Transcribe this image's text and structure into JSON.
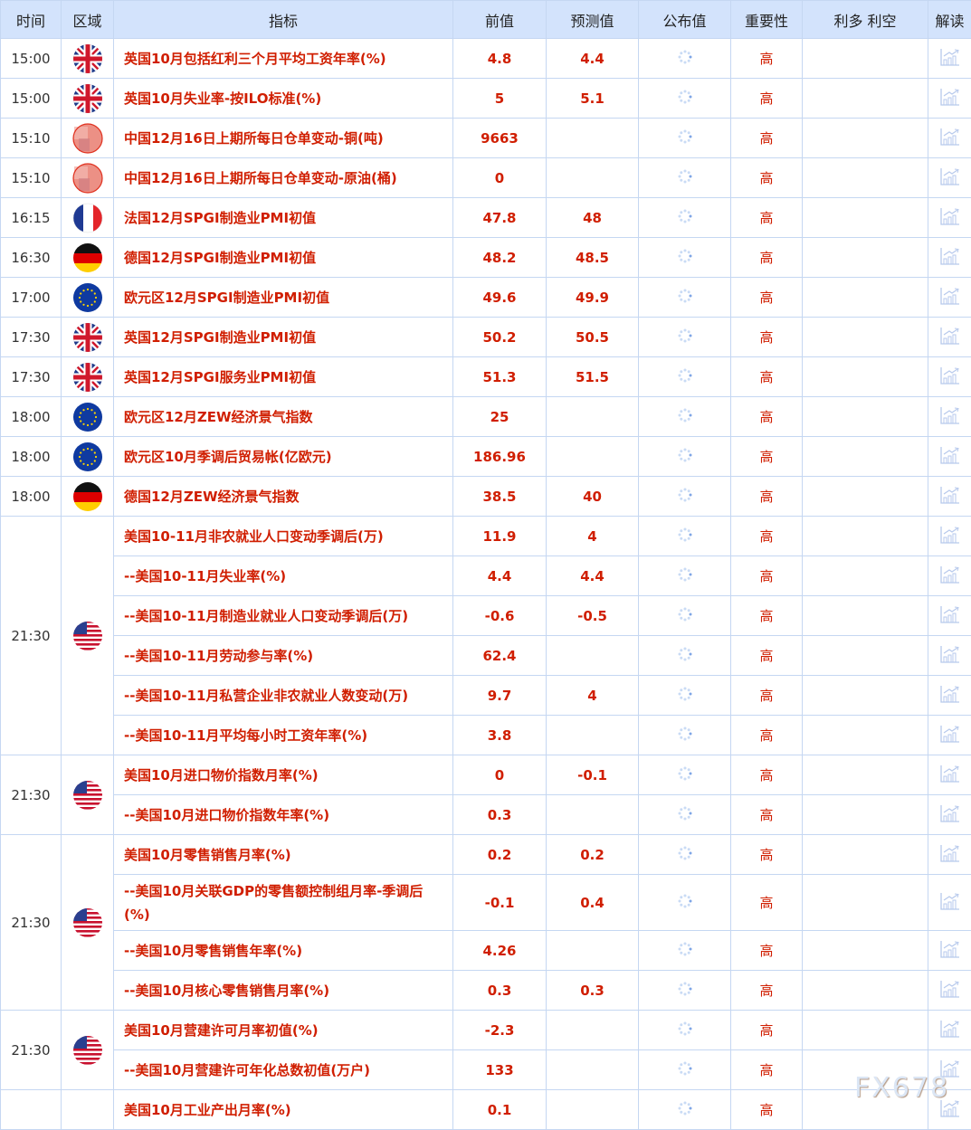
{
  "headers": [
    "时间",
    "区域",
    "指标",
    "前值",
    "预测值",
    "公布值",
    "重要性",
    "利多 利空",
    "解读"
  ],
  "colors": {
    "accent_red": "#d01e00",
    "header_bg": "#d3e3fc",
    "border": "#c5d7f2"
  },
  "rows": [
    {
      "time": "15:00",
      "flag": "uk",
      "span": 1,
      "indicator": "英国10月包括红利三个月平均工资年率(%)",
      "prev": "4.8",
      "forecast": "4.4",
      "actual": "",
      "importance": "高"
    },
    {
      "time": "15:00",
      "flag": "uk",
      "span": 1,
      "indicator": "英国10月失业率-按ILO标准(%)",
      "prev": "5",
      "forecast": "5.1",
      "actual": "",
      "importance": "高"
    },
    {
      "time": "15:10",
      "flag": "cn",
      "span": 1,
      "indicator": "中国12月16日上期所每日仓单变动-铜(吨)",
      "prev": "9663",
      "forecast": "",
      "actual": "",
      "importance": "高"
    },
    {
      "time": "15:10",
      "flag": "cn",
      "span": 1,
      "indicator": "中国12月16日上期所每日仓单变动-原油(桶)",
      "prev": "0",
      "forecast": "",
      "actual": "",
      "importance": "高"
    },
    {
      "time": "16:15",
      "flag": "fr",
      "span": 1,
      "indicator": "法国12月SPGI制造业PMI初值",
      "prev": "47.8",
      "forecast": "48",
      "actual": "",
      "importance": "高"
    },
    {
      "time": "16:30",
      "flag": "de",
      "span": 1,
      "indicator": "德国12月SPGI制造业PMI初值",
      "prev": "48.2",
      "forecast": "48.5",
      "actual": "",
      "importance": "高"
    },
    {
      "time": "17:00",
      "flag": "eu",
      "span": 1,
      "indicator": "欧元区12月SPGI制造业PMI初值",
      "prev": "49.6",
      "forecast": "49.9",
      "actual": "",
      "importance": "高"
    },
    {
      "time": "17:30",
      "flag": "uk",
      "span": 1,
      "indicator": "英国12月SPGI制造业PMI初值",
      "prev": "50.2",
      "forecast": "50.5",
      "actual": "",
      "importance": "高"
    },
    {
      "time": "17:30",
      "flag": "uk",
      "span": 1,
      "indicator": "英国12月SPGI服务业PMI初值",
      "prev": "51.3",
      "forecast": "51.5",
      "actual": "",
      "importance": "高"
    },
    {
      "time": "18:00",
      "flag": "eu",
      "span": 1,
      "indicator": "欧元区12月ZEW经济景气指数",
      "prev": "25",
      "forecast": "",
      "actual": "",
      "importance": "高"
    },
    {
      "time": "18:00",
      "flag": "eu",
      "span": 1,
      "indicator": "欧元区10月季调后贸易帐(亿欧元)",
      "prev": "186.96",
      "forecast": "",
      "actual": "",
      "importance": "高"
    },
    {
      "time": "18:00",
      "flag": "de",
      "span": 1,
      "indicator": "德国12月ZEW经济景气指数",
      "prev": "38.5",
      "forecast": "40",
      "actual": "",
      "importance": "高"
    },
    {
      "time": "21:30",
      "flag": "us",
      "span": 6,
      "indicator": "美国10-11月非农就业人口变动季调后(万)",
      "prev": "11.9",
      "forecast": "4",
      "actual": "",
      "importance": "高"
    },
    {
      "indicator": "--美国10-11月失业率(%)",
      "prev": "4.4",
      "forecast": "4.4",
      "actual": "",
      "importance": "高"
    },
    {
      "indicator": "--美国10-11月制造业就业人口变动季调后(万)",
      "prev": "-0.6",
      "forecast": "-0.5",
      "actual": "",
      "importance": "高"
    },
    {
      "indicator": "--美国10-11月劳动参与率(%)",
      "prev": "62.4",
      "forecast": "",
      "actual": "",
      "importance": "高"
    },
    {
      "indicator": "--美国10-11月私营企业非农就业人数变动(万)",
      "prev": "9.7",
      "forecast": "4",
      "actual": "",
      "importance": "高"
    },
    {
      "indicator": "--美国10-11月平均每小时工资年率(%)",
      "prev": "3.8",
      "forecast": "",
      "actual": "",
      "importance": "高"
    },
    {
      "time": "21:30",
      "flag": "us",
      "span": 2,
      "indicator": "美国10月进口物价指数月率(%)",
      "prev": "0",
      "forecast": "-0.1",
      "actual": "",
      "importance": "高"
    },
    {
      "indicator": "--美国10月进口物价指数年率(%)",
      "prev": "0.3",
      "forecast": "",
      "actual": "",
      "importance": "高"
    },
    {
      "time": "21:30",
      "flag": "us",
      "span": 4,
      "indicator": "美国10月零售销售月率(%)",
      "prev": "0.2",
      "forecast": "0.2",
      "actual": "",
      "importance": "高"
    },
    {
      "indicator": "--美国10月关联GDP的零售额控制组月率-季调后(%)",
      "prev": "-0.1",
      "forecast": "0.4",
      "actual": "",
      "importance": "高",
      "tall": true
    },
    {
      "indicator": "--美国10月零售销售年率(%)",
      "prev": "4.26",
      "forecast": "",
      "actual": "",
      "importance": "高"
    },
    {
      "indicator": "--美国10月核心零售销售月率(%)",
      "prev": "0.3",
      "forecast": "0.3",
      "actual": "",
      "importance": "高"
    },
    {
      "time": "21:30",
      "flag": "us",
      "span": 2,
      "indicator": "美国10月营建许可月率初值(%)",
      "prev": "-2.3",
      "forecast": "",
      "actual": "",
      "importance": "高"
    },
    {
      "indicator": "--美国10月营建许可年化总数初值(万户)",
      "prev": "133",
      "forecast": "",
      "actual": "",
      "importance": "高"
    },
    {
      "time": "",
      "flag": "",
      "span": 1,
      "indicator": "美国10月工业产出月率(%)",
      "prev": "0.1",
      "forecast": "",
      "actual": "",
      "importance": "高"
    }
  ],
  "watermark": "FX678"
}
